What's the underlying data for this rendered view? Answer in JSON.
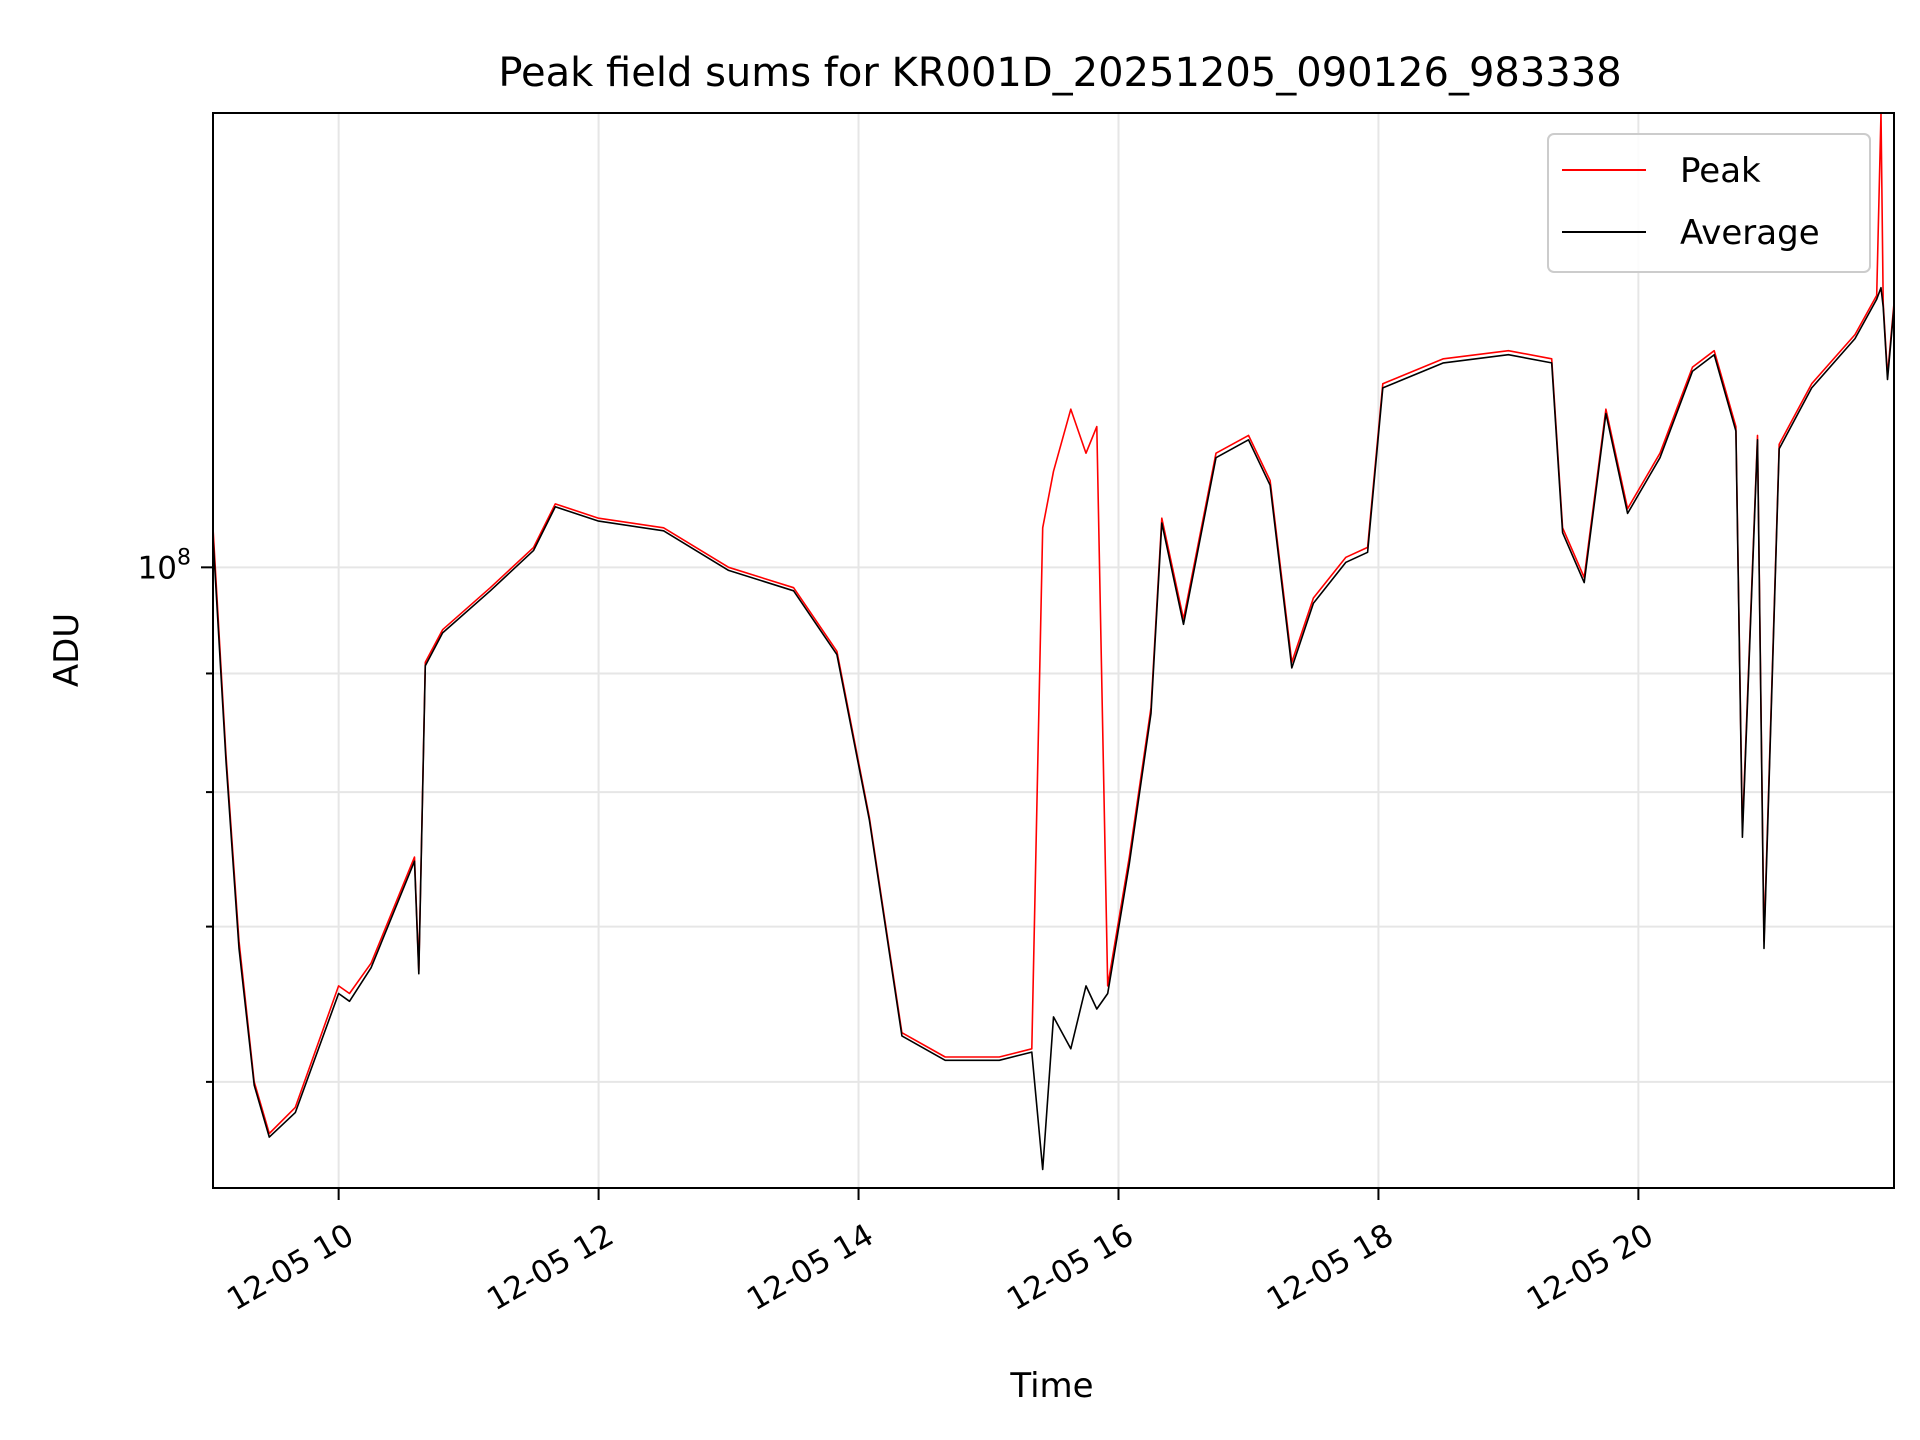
{
  "chart_data": {
    "type": "line",
    "title": "Peak field sums for KR001D_20251205_090126_983338",
    "xlabel": "Time",
    "ylabel": "ADU",
    "yscale": "log",
    "ylim": [
      54000000,
      157000000
    ],
    "xlim": [
      "2025-12-05 09:02",
      "2025-12-05 21:58"
    ],
    "grid": true,
    "legend_position": "top-right",
    "x_ticks": [
      "12-05 10",
      "12-05 12",
      "12-05 14",
      "12-05 16",
      "12-05 18",
      "12-05 20"
    ],
    "y_ticks": [
      {
        "value": 100000000,
        "label": "10^8",
        "major": true
      },
      {
        "value": 60000000,
        "major": false
      },
      {
        "value": 70000000,
        "major": false
      },
      {
        "value": 80000000,
        "major": false
      },
      {
        "value": 90000000,
        "major": false
      }
    ],
    "series": [
      {
        "name": "Peak",
        "color": "#ff0000",
        "points": [
          [
            "2025-12-05 09:02",
            104000000
          ],
          [
            "2025-12-05 09:08",
            83000000
          ],
          [
            "2025-12-05 09:14",
            69000000
          ],
          [
            "2025-12-05 09:21",
            60000000
          ],
          [
            "2025-12-05 09:28",
            57000000
          ],
          [
            "2025-12-05 09:40",
            58500000
          ],
          [
            "2025-12-05 10:00",
            66000000
          ],
          [
            "2025-12-05 10:05",
            65500000
          ],
          [
            "2025-12-05 10:15",
            67500000
          ],
          [
            "2025-12-05 10:35",
            75000000
          ],
          [
            "2025-12-05 10:37",
            67000000
          ],
          [
            "2025-12-05 10:40",
            91000000
          ],
          [
            "2025-12-05 10:48",
            94000000
          ],
          [
            "2025-12-05 11:10",
            98000000
          ],
          [
            "2025-12-05 11:30",
            102000000
          ],
          [
            "2025-12-05 11:40",
            106500000
          ],
          [
            "2025-12-05 12:00",
            105000000
          ],
          [
            "2025-12-05 12:30",
            104000000
          ],
          [
            "2025-12-05 13:00",
            100000000
          ],
          [
            "2025-12-05 13:30",
            98000000
          ],
          [
            "2025-12-05 13:50",
            92000000
          ],
          [
            "2025-12-05 14:05",
            78000000
          ],
          [
            "2025-12-05 14:20",
            63000000
          ],
          [
            "2025-12-05 14:40",
            61500000
          ],
          [
            "2025-12-05 15:05",
            61500000
          ],
          [
            "2025-12-05 15:20",
            62000000
          ],
          [
            "2025-12-05 15:25",
            104000000
          ],
          [
            "2025-12-05 15:30",
            110000000
          ],
          [
            "2025-12-05 15:38",
            117000000
          ],
          [
            "2025-12-05 15:45",
            112000000
          ],
          [
            "2025-12-05 15:50",
            115000000
          ],
          [
            "2025-12-05 15:55",
            66000000
          ],
          [
            "2025-12-05 16:05",
            75000000
          ],
          [
            "2025-12-05 16:15",
            87000000
          ],
          [
            "2025-12-05 16:20",
            105000000
          ],
          [
            "2025-12-05 16:30",
            95000000
          ],
          [
            "2025-12-05 16:45",
            112000000
          ],
          [
            "2025-12-05 17:00",
            114000000
          ],
          [
            "2025-12-05 17:10",
            109000000
          ],
          [
            "2025-12-05 17:20",
            91000000
          ],
          [
            "2025-12-05 17:30",
            97000000
          ],
          [
            "2025-12-05 17:45",
            101000000
          ],
          [
            "2025-12-05 17:55",
            102000000
          ],
          [
            "2025-12-05 18:02",
            120000000
          ],
          [
            "2025-12-05 18:30",
            123000000
          ],
          [
            "2025-12-05 19:00",
            124000000
          ],
          [
            "2025-12-05 19:20",
            123000000
          ],
          [
            "2025-12-05 19:25",
            104000000
          ],
          [
            "2025-12-05 19:35",
            99000000
          ],
          [
            "2025-12-05 19:45",
            117000000
          ],
          [
            "2025-12-05 19:55",
            106000000
          ],
          [
            "2025-12-05 20:10",
            112000000
          ],
          [
            "2025-12-05 20:25",
            122000000
          ],
          [
            "2025-12-05 20:35",
            124000000
          ],
          [
            "2025-12-05 20:45",
            115000000
          ],
          [
            "2025-12-05 20:48",
            77000000
          ],
          [
            "2025-12-05 20:55",
            114000000
          ],
          [
            "2025-12-05 20:58",
            69000000
          ],
          [
            "2025-12-05 21:05",
            113000000
          ],
          [
            "2025-12-05 21:20",
            120000000
          ],
          [
            "2025-12-05 21:40",
            126000000
          ],
          [
            "2025-12-05 21:50",
            131000000
          ],
          [
            "2025-12-05 21:52",
            157000000
          ],
          [
            "2025-12-05 21:53",
            130000000
          ],
          [
            "2025-12-05 21:55",
            121000000
          ],
          [
            "2025-12-05 21:58",
            130000000
          ]
        ]
      },
      {
        "name": "Average",
        "color": "#000000",
        "points": [
          [
            "2025-12-05 09:02",
            103000000
          ],
          [
            "2025-12-05 09:08",
            82500000
          ],
          [
            "2025-12-05 09:14",
            68500000
          ],
          [
            "2025-12-05 09:21",
            59800000
          ],
          [
            "2025-12-05 09:28",
            56800000
          ],
          [
            "2025-12-05 09:40",
            58200000
          ],
          [
            "2025-12-05 10:00",
            65500000
          ],
          [
            "2025-12-05 10:05",
            65000000
          ],
          [
            "2025-12-05 10:15",
            67200000
          ],
          [
            "2025-12-05 10:35",
            74700000
          ],
          [
            "2025-12-05 10:37",
            66800000
          ],
          [
            "2025-12-05 10:40",
            90700000
          ],
          [
            "2025-12-05 10:48",
            93700000
          ],
          [
            "2025-12-05 11:10",
            97700000
          ],
          [
            "2025-12-05 11:30",
            101700000
          ],
          [
            "2025-12-05 11:40",
            106200000
          ],
          [
            "2025-12-05 12:00",
            104700000
          ],
          [
            "2025-12-05 12:30",
            103700000
          ],
          [
            "2025-12-05 13:00",
            99700000
          ],
          [
            "2025-12-05 13:30",
            97700000
          ],
          [
            "2025-12-05 13:50",
            91700000
          ],
          [
            "2025-12-05 14:05",
            77800000
          ],
          [
            "2025-12-05 14:20",
            62800000
          ],
          [
            "2025-12-05 14:40",
            61300000
          ],
          [
            "2025-12-05 15:05",
            61300000
          ],
          [
            "2025-12-05 15:20",
            61800000
          ],
          [
            "2025-12-05 15:25",
            55000000
          ],
          [
            "2025-12-05 15:30",
            64000000
          ],
          [
            "2025-12-05 15:38",
            62000000
          ],
          [
            "2025-12-05 15:45",
            66000000
          ],
          [
            "2025-12-05 15:50",
            64500000
          ],
          [
            "2025-12-05 15:55",
            65500000
          ],
          [
            "2025-12-05 16:05",
            74500000
          ],
          [
            "2025-12-05 16:15",
            86500000
          ],
          [
            "2025-12-05 16:20",
            104500000
          ],
          [
            "2025-12-05 16:30",
            94500000
          ],
          [
            "2025-12-05 16:45",
            111500000
          ],
          [
            "2025-12-05 17:00",
            113500000
          ],
          [
            "2025-12-05 17:10",
            108500000
          ],
          [
            "2025-12-05 17:20",
            90500000
          ],
          [
            "2025-12-05 17:30",
            96500000
          ],
          [
            "2025-12-05 17:45",
            100500000
          ],
          [
            "2025-12-05 17:55",
            101500000
          ],
          [
            "2025-12-05 18:02",
            119500000
          ],
          [
            "2025-12-05 18:30",
            122500000
          ],
          [
            "2025-12-05 19:00",
            123500000
          ],
          [
            "2025-12-05 19:20",
            122500000
          ],
          [
            "2025-12-05 19:25",
            103500000
          ],
          [
            "2025-12-05 19:35",
            98500000
          ],
          [
            "2025-12-05 19:45",
            116500000
          ],
          [
            "2025-12-05 19:55",
            105500000
          ],
          [
            "2025-12-05 20:10",
            111500000
          ],
          [
            "2025-12-05 20:25",
            121500000
          ],
          [
            "2025-12-05 20:35",
            123500000
          ],
          [
            "2025-12-05 20:45",
            114500000
          ],
          [
            "2025-12-05 20:48",
            76500000
          ],
          [
            "2025-12-05 20:55",
            113500000
          ],
          [
            "2025-12-05 20:58",
            68500000
          ],
          [
            "2025-12-05 21:05",
            112500000
          ],
          [
            "2025-12-05 21:20",
            119500000
          ],
          [
            "2025-12-05 21:40",
            125500000
          ],
          [
            "2025-12-05 21:50",
            130500000
          ],
          [
            "2025-12-05 21:52",
            132000000
          ],
          [
            "2025-12-05 21:53",
            129500000
          ],
          [
            "2025-12-05 21:55",
            120500000
          ],
          [
            "2025-12-05 21:58",
            129500000
          ]
        ]
      }
    ]
  }
}
